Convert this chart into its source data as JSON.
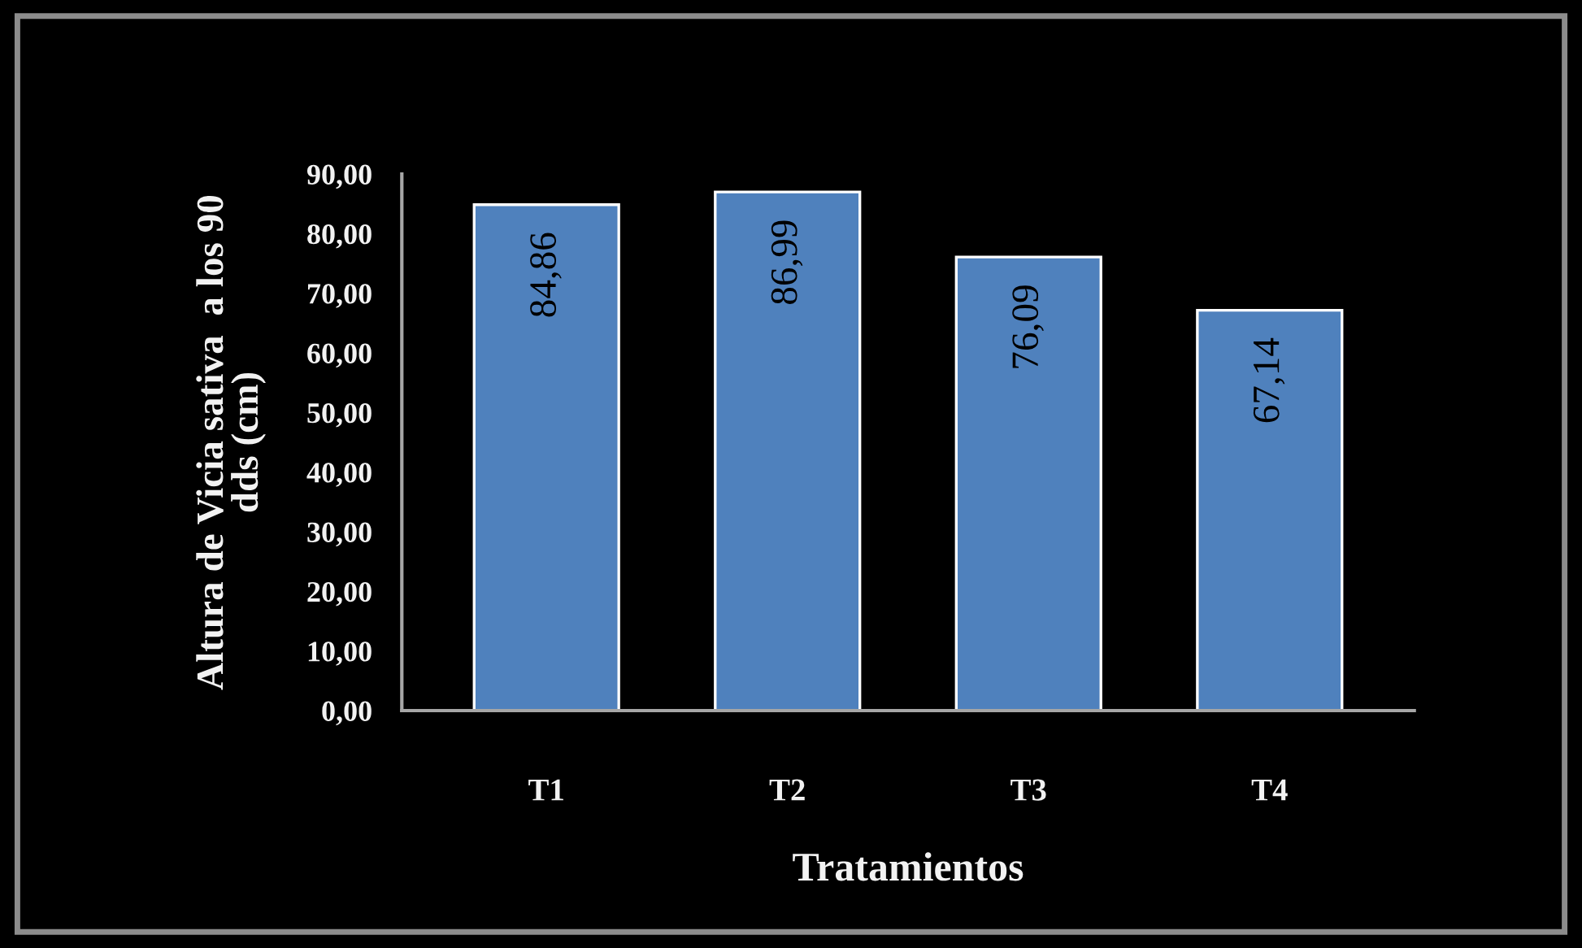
{
  "chart_data": {
    "type": "bar",
    "xlabel": "Tratamientos",
    "ylabel": "Altura de Vicia sativa  a los 90\ndds (cm)",
    "categories": [
      "T1",
      "T2",
      "T3",
      "T4"
    ],
    "values": [
      84.86,
      86.99,
      76.09,
      67.14
    ],
    "value_labels": [
      "84,86",
      "86,99",
      "76,09",
      "67,14"
    ],
    "color": "#4f81bd",
    "ylim": [
      0,
      90
    ],
    "yticks": [
      {
        "value": 0,
        "label": "0,00"
      },
      {
        "value": 10,
        "label": "10,00"
      },
      {
        "value": 20,
        "label": "20,00"
      },
      {
        "value": 30,
        "label": "30,00"
      },
      {
        "value": 40,
        "label": "40,00"
      },
      {
        "value": 50,
        "label": "50,00"
      },
      {
        "value": 60,
        "label": "60,00"
      },
      {
        "value": 70,
        "label": "70,00"
      },
      {
        "value": 80,
        "label": "80,00"
      },
      {
        "value": 90,
        "label": "90,00"
      }
    ]
  }
}
